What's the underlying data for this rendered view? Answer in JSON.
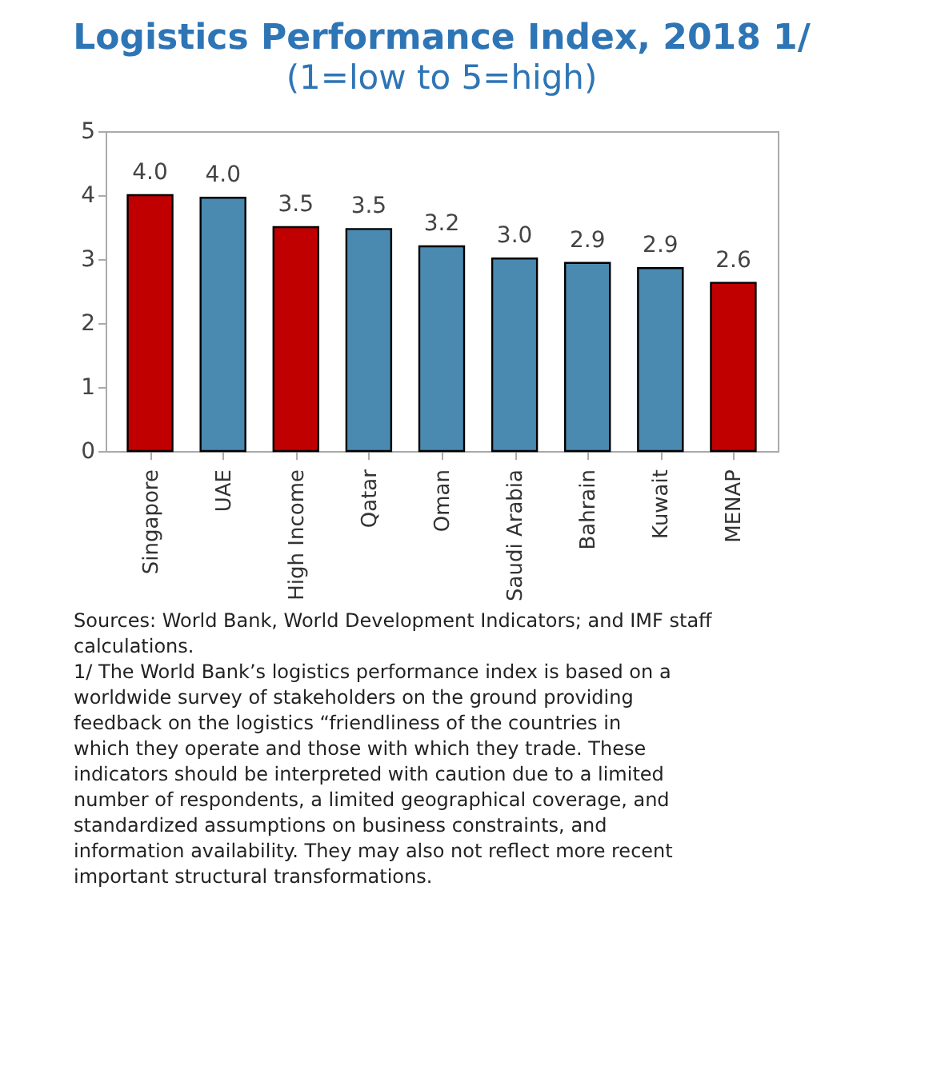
{
  "chart_data": {
    "type": "bar",
    "title": "Logistics Performance Index, 2018 1/",
    "subtitle": "(1=low to 5=high)",
    "categories": [
      "Singapore",
      "UAE",
      "High Income",
      "Qatar",
      "Oman",
      "Saudi Arabia",
      "Bahrain",
      "Kuwait",
      "MENAP"
    ],
    "values": [
      4.0,
      3.96,
      3.5,
      3.47,
      3.2,
      3.01,
      2.94,
      2.86,
      2.63
    ],
    "value_labels": [
      "4.0",
      "4.0",
      "3.5",
      "3.5",
      "3.2",
      "3.0",
      "2.9",
      "2.9",
      "2.6"
    ],
    "colors": [
      "#c00000",
      "#4a8ab0",
      "#c00000",
      "#4a8ab0",
      "#4a8ab0",
      "#4a8ab0",
      "#4a8ab0",
      "#4a8ab0",
      "#c00000"
    ],
    "ylim": [
      0,
      5
    ],
    "yticks": [
      0,
      1,
      2,
      3,
      4,
      5
    ],
    "grid": false,
    "legend": false,
    "annotations": [
      "Sources: World Bank, World Development Indicators; and IMF staff calculations.",
      "1/ The World Bank’s logistics performance index is based on a worldwide survey of stakeholders on the ground providing feedback on the logistics “friendliness of the countries in which they operate and those with which they trade. These indicators should be interpreted with caution due to a limited number of respondents, a limited geographical coverage, and standardized assumptions on business constraints, and information availability. They may also not reflect more recent important structural transformations."
    ]
  }
}
